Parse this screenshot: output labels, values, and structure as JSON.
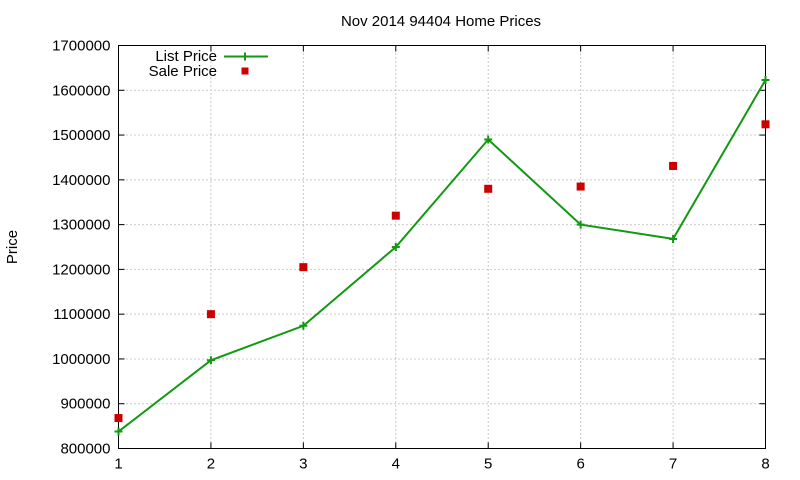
{
  "chart_data": {
    "type": "line",
    "title": "Nov 2014 94404 Home Prices",
    "xlabel": "",
    "ylabel": "Price",
    "x": [
      1,
      2,
      3,
      4,
      5,
      6,
      7,
      8
    ],
    "xlim": [
      1,
      8
    ],
    "ylim": [
      800000,
      1700000
    ],
    "yticks": [
      "800000",
      "900000",
      "1000000",
      "1100000",
      "1200000",
      "1300000",
      "1400000",
      "1500000",
      "1600000",
      "1700000"
    ],
    "xticks": [
      "1",
      "2",
      "3",
      "4",
      "5",
      "6",
      "7",
      "8"
    ],
    "grid": true,
    "legend_position": "top-left",
    "series": [
      {
        "name": "List Price",
        "style": "line+plus-markers",
        "color": "#119911",
        "values": [
          838000,
          997000,
          1074000,
          1250000,
          1490000,
          1300000,
          1268000,
          1623000
        ]
      },
      {
        "name": "Sale Price",
        "style": "square-markers",
        "color": "#cc0000",
        "values": [
          868000,
          1100000,
          1205000,
          1320000,
          1380000,
          1385000,
          1431000,
          1524000
        ]
      }
    ]
  }
}
